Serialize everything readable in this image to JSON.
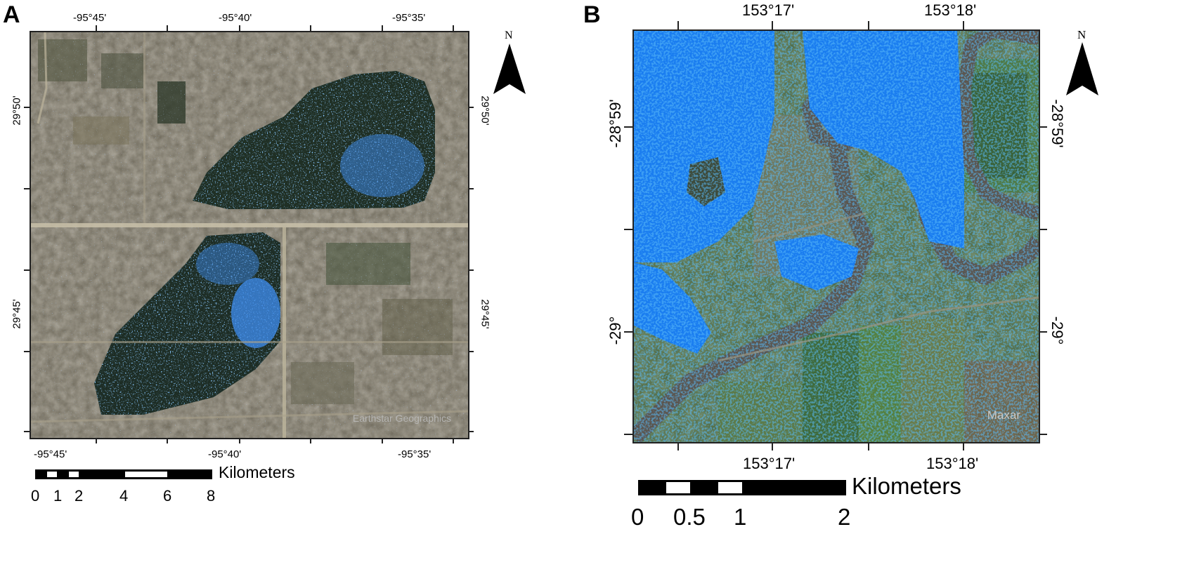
{
  "panels": {
    "a": {
      "label": "A",
      "lon_ticks_top": [
        "-95°45'",
        "-95°40'",
        "-95°35'"
      ],
      "lon_ticks_bottom": [
        "-95°45'",
        "-95°40'",
        "-95°35'"
      ],
      "lat_ticks_left": [
        "29°50'",
        "29°45'"
      ],
      "lat_ticks_right": [
        "29°50'",
        "29°45'"
      ],
      "credit": "Earthstar Geographics",
      "north": "N",
      "scale_unit": "Kilometers",
      "scale_labels": [
        "0",
        "1",
        "2",
        "4",
        "6",
        "8"
      ],
      "flood_color": "#3d8ef2"
    },
    "b": {
      "label": "B",
      "lon_ticks_top": [
        "153°17'",
        "153°18'"
      ],
      "lon_ticks_bottom": [
        "153°17'",
        "153°18'"
      ],
      "lat_ticks_left": [
        "-28°59'",
        "-29°"
      ],
      "lat_ticks_right": [
        "-28°59'",
        "-29°"
      ],
      "credit": "Maxar",
      "north": "N",
      "scale_unit": "Kilometers",
      "scale_labels": [
        "0",
        "0.5",
        "1",
        "2"
      ],
      "flood_color": "#1a7df0"
    }
  }
}
